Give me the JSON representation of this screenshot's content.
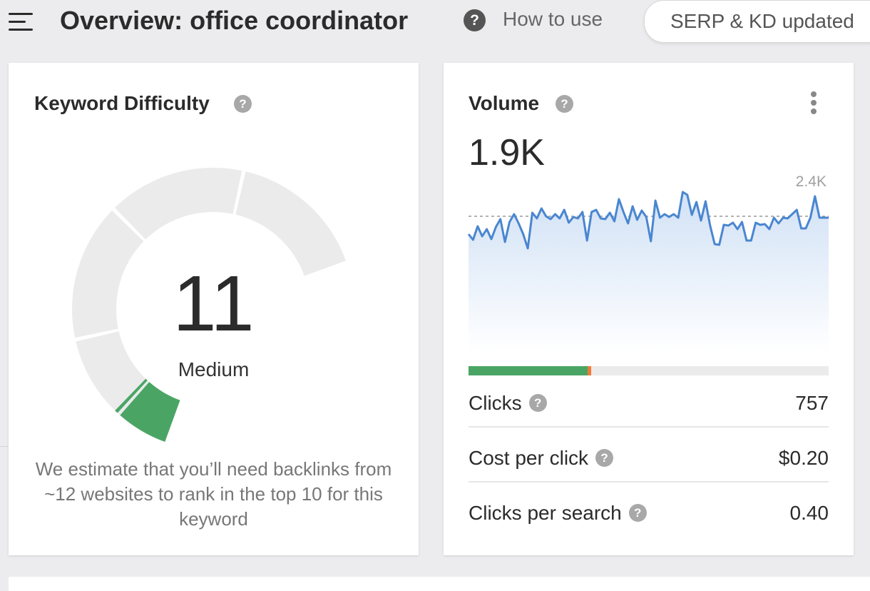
{
  "header": {
    "title": "Overview: office coordinator",
    "help_glyph": "?",
    "how_to_use": "How to use",
    "serp_status": "SERP & KD updated"
  },
  "keyword_difficulty": {
    "title": "Keyword Difficulty",
    "value": "11",
    "level": "Medium",
    "gauge_fraction": 0.11,
    "description": "We estimate that you’ll need backlinks from ~12 websites to rank in the top 10 for this keyword",
    "gauge_color": "#4aa564",
    "track_color": "#ebebec"
  },
  "volume": {
    "title": "Volume",
    "value": "1.9K",
    "chart_max_label": "2.4K",
    "line_color": "#4a86d0",
    "clicks_bar": {
      "organic_fraction": 0.33,
      "paid_fraction": 0.01,
      "organic_color": "#4aa564",
      "paid_color": "#ef7b37"
    },
    "metrics": [
      {
        "label": "Clicks",
        "value": "757"
      },
      {
        "label": "Cost per click",
        "value": "$0.20"
      },
      {
        "label": "Clicks per search",
        "value": "0.40"
      }
    ]
  },
  "chart_data": {
    "type": "area",
    "ylim": [
      0,
      2400
    ],
    "average": 1900,
    "values": [
      1650,
      1570,
      1760,
      1620,
      1720,
      1580,
      1750,
      1860,
      1540,
      1820,
      1930,
      1800,
      1650,
      1450,
      1950,
      1870,
      2010,
      1900,
      1860,
      1930,
      1870,
      1990,
      1810,
      1890,
      1870,
      1960,
      1560,
      1960,
      1990,
      1870,
      1860,
      1950,
      1830,
      2140,
      1960,
      1800,
      2040,
      1850,
      1980,
      1890,
      1550,
      2120,
      1880,
      1930,
      1890,
      1930,
      1880,
      2240,
      2200,
      1920,
      2100,
      1840,
      2110,
      1770,
      1510,
      1500,
      1780,
      1770,
      1810,
      1720,
      1820,
      1560,
      1560,
      1810,
      1780,
      1790,
      1720,
      1880,
      1800,
      1880,
      1870,
      1930,
      1990,
      1730,
      1730,
      1880,
      2180,
      1880,
      1880,
      1880
    ]
  }
}
